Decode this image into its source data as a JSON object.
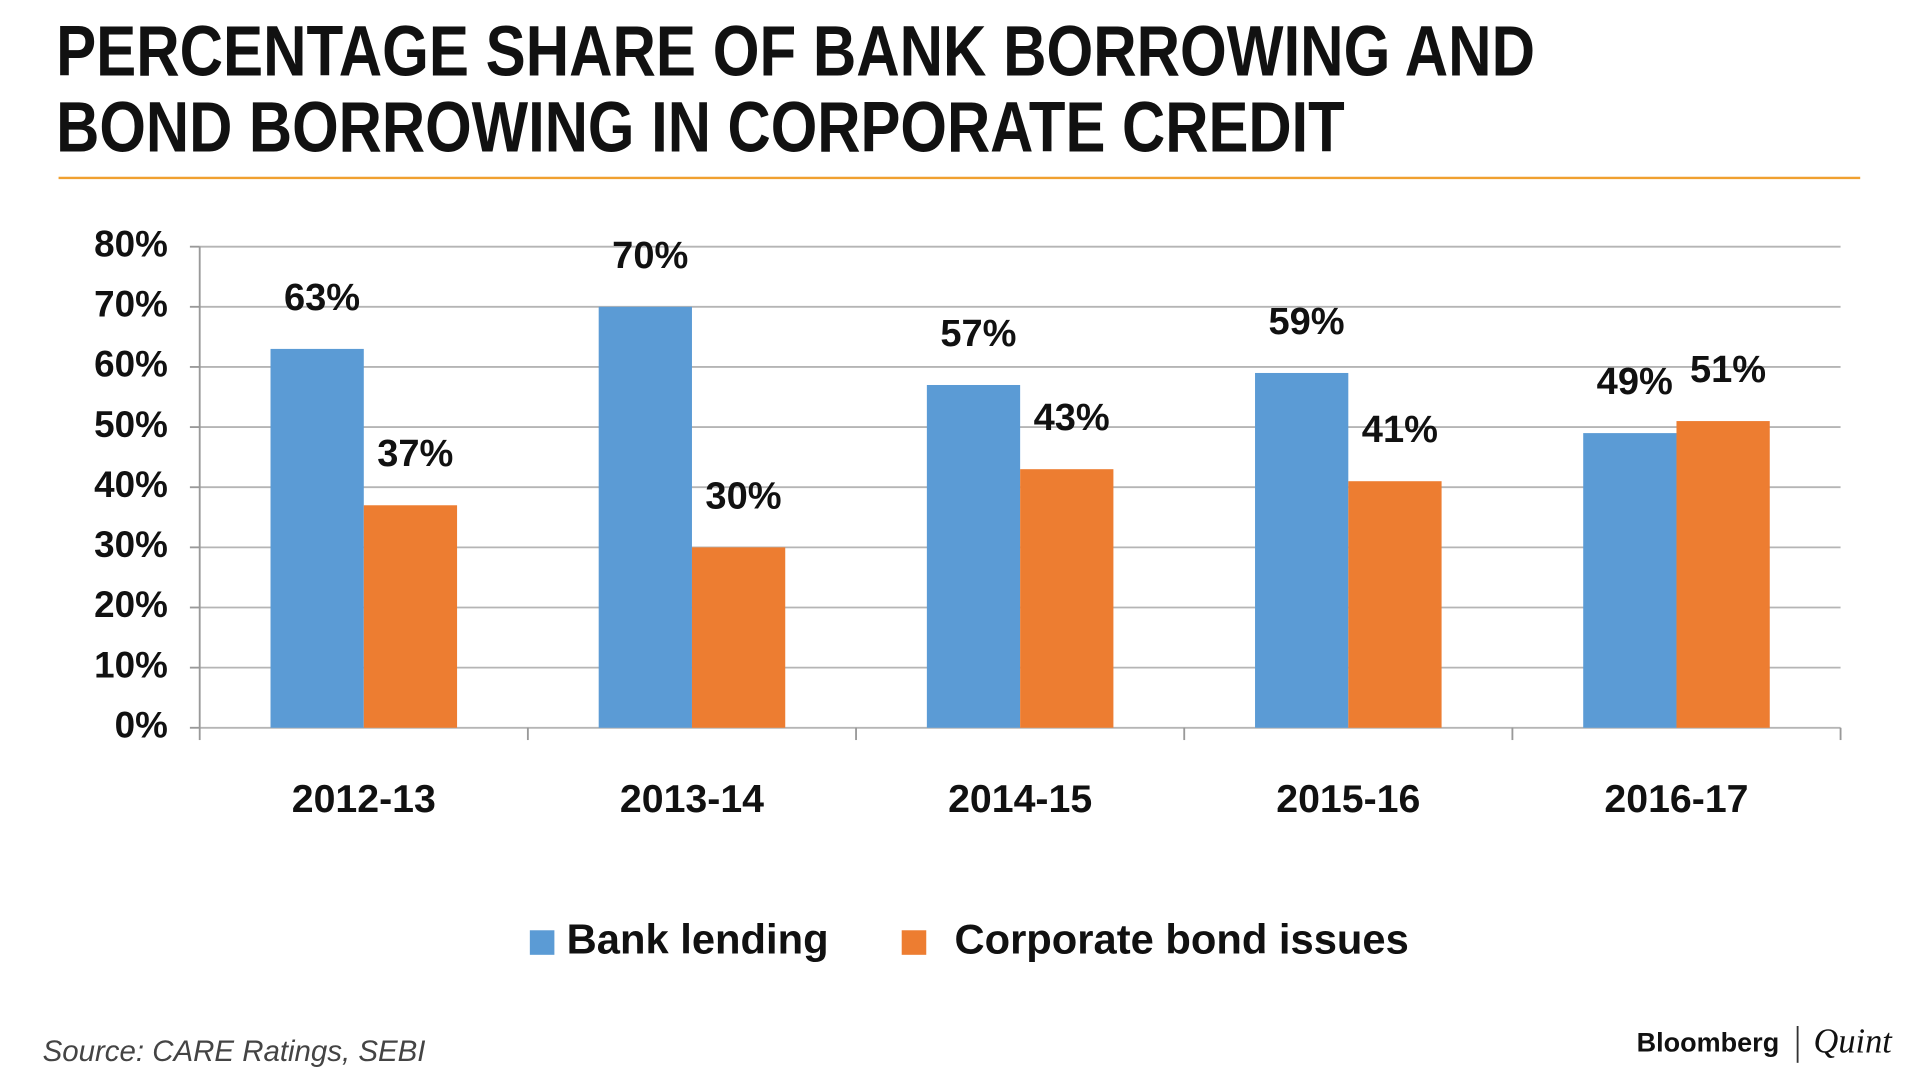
{
  "chart_data": {
    "type": "bar",
    "title": [
      "PERCENTAGE SHARE OF BANK BORROWING AND",
      "BOND BORROWING IN CORPORATE CREDIT"
    ],
    "categories": [
      "2012-13",
      "2013-14",
      "2014-15",
      "2015-16",
      "2016-17"
    ],
    "series": [
      {
        "name": "Bank lending",
        "color": "#5b9bd5",
        "values": [
          63,
          70,
          57,
          59,
          49
        ],
        "value_labels": [
          "63%",
          "70%",
          "57%",
          "59%",
          "49%"
        ]
      },
      {
        "name": "Corporate bond issues",
        "color": "#ed7d31",
        "values": [
          37,
          30,
          43,
          41,
          51
        ],
        "value_labels": [
          "37%",
          "30%",
          "43%",
          "41%",
          "51%"
        ]
      }
    ],
    "ylim": [
      0,
      80
    ],
    "yticks": [
      {
        "value": 0,
        "label": "0%"
      },
      {
        "value": 10,
        "label": "10%"
      },
      {
        "value": 20,
        "label": "20%"
      },
      {
        "value": 30,
        "label": "30%"
      },
      {
        "value": 40,
        "label": "40%"
      },
      {
        "value": 50,
        "label": "50%"
      },
      {
        "value": 60,
        "label": "60%"
      },
      {
        "value": 70,
        "label": "70%"
      },
      {
        "value": 80,
        "label": "80%"
      }
    ],
    "grid": true,
    "legend": "bottom",
    "source": "Source: CARE Ratings, SEBI",
    "logo": [
      "Bloomberg",
      "Quint"
    ]
  }
}
